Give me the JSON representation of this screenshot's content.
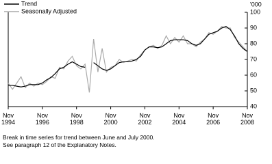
{
  "chart_data": {
    "type": "line",
    "y_unit": "'000",
    "notes": [
      "Break in time series for trend between June and July 2000.",
      "See paragraph 12 of the Explanatory Notes."
    ],
    "x": [
      "1994-11",
      "1995-02",
      "1995-05",
      "1995-08",
      "1995-11",
      "1996-02",
      "1996-05",
      "1996-08",
      "1996-11",
      "1997-02",
      "1997-05",
      "1997-08",
      "1997-11",
      "1998-02",
      "1998-05",
      "1998-08",
      "1998-11",
      "1999-02",
      "1999-05",
      "1999-08",
      "1999-11",
      "2000-02",
      "2000-05",
      "2000-08",
      "2000-11",
      "2001-02",
      "2001-05",
      "2001-08",
      "2001-11",
      "2002-02",
      "2002-05",
      "2002-08",
      "2002-11",
      "2003-02",
      "2003-05",
      "2003-08",
      "2003-11",
      "2004-02",
      "2004-05",
      "2004-08",
      "2004-11",
      "2005-02",
      "2005-05",
      "2005-08",
      "2005-11",
      "2006-02",
      "2006-05",
      "2006-08",
      "2006-11",
      "2007-02",
      "2007-05",
      "2007-08",
      "2007-11",
      "2008-02",
      "2008-05",
      "2008-08",
      "2008-11"
    ],
    "series": [
      {
        "name": "Trend",
        "color": "#000000",
        "values": [
          53.5,
          53.5,
          53,
          52.5,
          53,
          54,
          54,
          54,
          55,
          57,
          58.5,
          61,
          64,
          65,
          67,
          68.5,
          67,
          65.5,
          65,
          null,
          68,
          66,
          64,
          63,
          64,
          66,
          68,
          68.5,
          68.5,
          69,
          70,
          72,
          76,
          78,
          78,
          77.5,
          78,
          80,
          82,
          82.5,
          82.5,
          82.5,
          82,
          80,
          79,
          80,
          83,
          86,
          87,
          88,
          90,
          91,
          89,
          85,
          80,
          77,
          75
        ]
      },
      {
        "name": "Seasonally Adjusted",
        "color": "#aaaaaa",
        "values": [
          55,
          51,
          55,
          59,
          52,
          55,
          53,
          55,
          54,
          56,
          59,
          58,
          65,
          64,
          69,
          72,
          66,
          64,
          67,
          49,
          83,
          62,
          77,
          62,
          65,
          66,
          70,
          68,
          69,
          70,
          69,
          73,
          76,
          78,
          79,
          77,
          79,
          85,
          80,
          84,
          81,
          85,
          80,
          80,
          78,
          81,
          83,
          87,
          86,
          88,
          91,
          90,
          90,
          84,
          81,
          78,
          75
        ]
      }
    ],
    "xlim": [
      "1994-11",
      "2008-11"
    ],
    "xticks": [
      {
        "value": "1994-11",
        "label": "Nov 1994"
      },
      {
        "value": "1996-11",
        "label": "Nov 1996"
      },
      {
        "value": "1998-11",
        "label": "Nov 1998"
      },
      {
        "value": "2000-11",
        "label": "Nov 2000"
      },
      {
        "value": "2002-11",
        "label": "Nov 2002"
      },
      {
        "value": "2004-11",
        "label": "Nov 2004"
      },
      {
        "value": "2006-11",
        "label": "Nov 2006"
      },
      {
        "value": "2008-11",
        "label": "Nov 2008"
      }
    ],
    "ylim": [
      40,
      100
    ],
    "yticks": [
      40,
      50,
      60,
      70,
      80,
      90,
      100
    ],
    "legend": "top-left"
  }
}
